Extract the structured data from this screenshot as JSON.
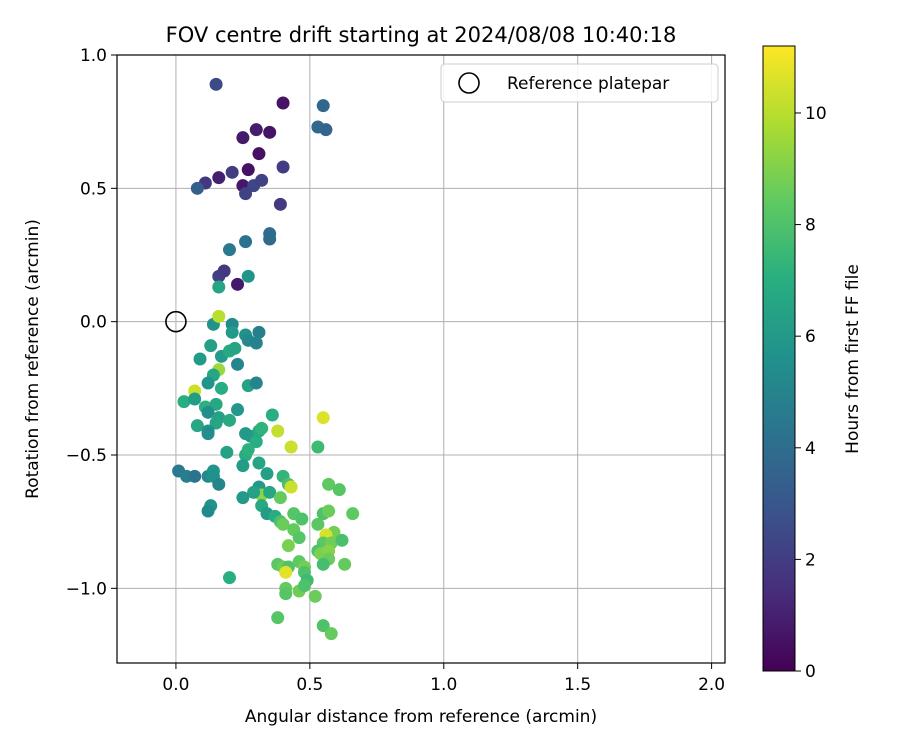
{
  "chart_data": {
    "type": "scatter",
    "title": "FOV centre drift starting at 2024/08/08 10:40:18",
    "xlabel": "Angular distance from reference (arcmin)",
    "ylabel": "Rotation from reference (arcmin)",
    "xlim": [
      -0.22,
      2.05
    ],
    "ylim": [
      -1.28,
      1.0
    ],
    "xticks": [
      0.0,
      0.5,
      1.0,
      1.5,
      2.0
    ],
    "xtick_labels": [
      "0.0",
      "0.5",
      "1.0",
      "1.5",
      "2.0"
    ],
    "yticks": [
      1.0,
      0.5,
      0.0,
      -0.5,
      -1.0
    ],
    "ytick_labels": [
      "1.0",
      "0.5",
      "0.0",
      "−0.5",
      "−1.0"
    ],
    "grid": true,
    "legend": {
      "entries": [
        "Reference platepar"
      ],
      "placement": "top-right"
    },
    "colorbar": {
      "label": "Hours from first FF file",
      "colormap": "viridis",
      "range": [
        0,
        11.2
      ],
      "ticks": [
        0,
        2,
        4,
        6,
        8,
        10
      ],
      "tick_labels": [
        "0",
        "2",
        "4",
        "6",
        "8",
        "10"
      ]
    },
    "reference_point": {
      "x": 0.0,
      "y": 0.0
    },
    "points": [
      {
        "x": 0.15,
        "y": 0.89,
        "c": 2.5
      },
      {
        "x": 0.4,
        "y": 0.82,
        "c": 0.6
      },
      {
        "x": 0.55,
        "y": 0.81,
        "c": 3.7
      },
      {
        "x": 0.25,
        "y": 0.69,
        "c": 0.8
      },
      {
        "x": 0.3,
        "y": 0.72,
        "c": 0.9
      },
      {
        "x": 0.35,
        "y": 0.71,
        "c": 0.6
      },
      {
        "x": 0.53,
        "y": 0.73,
        "c": 3.8
      },
      {
        "x": 0.56,
        "y": 0.72,
        "c": 3.6
      },
      {
        "x": 0.31,
        "y": 0.63,
        "c": 0.5
      },
      {
        "x": 0.21,
        "y": 0.56,
        "c": 2.0
      },
      {
        "x": 0.27,
        "y": 0.57,
        "c": 0.5
      },
      {
        "x": 0.4,
        "y": 0.58,
        "c": 2.0
      },
      {
        "x": 0.16,
        "y": 0.54,
        "c": 1.0
      },
      {
        "x": 0.11,
        "y": 0.52,
        "c": 1.8
      },
      {
        "x": 0.08,
        "y": 0.5,
        "c": 3.4
      },
      {
        "x": 0.25,
        "y": 0.51,
        "c": 0.7
      },
      {
        "x": 0.29,
        "y": 0.51,
        "c": 2.3
      },
      {
        "x": 0.26,
        "y": 0.48,
        "c": 2.2
      },
      {
        "x": 0.32,
        "y": 0.53,
        "c": 2.2
      },
      {
        "x": 0.39,
        "y": 0.44,
        "c": 1.9
      },
      {
        "x": 0.35,
        "y": 0.33,
        "c": 4.0
      },
      {
        "x": 0.35,
        "y": 0.31,
        "c": 3.9
      },
      {
        "x": 0.26,
        "y": 0.3,
        "c": 4.2
      },
      {
        "x": 0.2,
        "y": 0.27,
        "c": 4.5
      },
      {
        "x": 0.16,
        "y": 0.17,
        "c": 2.1
      },
      {
        "x": 0.18,
        "y": 0.19,
        "c": 1.9
      },
      {
        "x": 0.23,
        "y": 0.14,
        "c": 0.8
      },
      {
        "x": 0.27,
        "y": 0.17,
        "c": 5.8
      },
      {
        "x": 0.16,
        "y": 0.13,
        "c": 6.5
      },
      {
        "x": 0.14,
        "y": -0.01,
        "c": 5.7
      },
      {
        "x": 0.16,
        "y": 0.02,
        "c": 10.0
      },
      {
        "x": 0.21,
        "y": -0.01,
        "c": 5.3
      },
      {
        "x": 0.21,
        "y": -0.04,
        "c": 6.0
      },
      {
        "x": 0.26,
        "y": -0.05,
        "c": 5.6
      },
      {
        "x": 0.27,
        "y": -0.07,
        "c": 5.2
      },
      {
        "x": 0.31,
        "y": -0.04,
        "c": 4.8
      },
      {
        "x": 0.3,
        "y": -0.08,
        "c": 4.9
      },
      {
        "x": 0.13,
        "y": -0.09,
        "c": 6.3
      },
      {
        "x": 0.17,
        "y": -0.13,
        "c": 6.1
      },
      {
        "x": 0.2,
        "y": -0.11,
        "c": 6.8
      },
      {
        "x": 0.22,
        "y": -0.1,
        "c": 6.5
      },
      {
        "x": 0.09,
        "y": -0.14,
        "c": 6.0
      },
      {
        "x": 0.23,
        "y": -0.16,
        "c": 5.0
      },
      {
        "x": 0.16,
        "y": -0.18,
        "c": 9.5
      },
      {
        "x": 0.14,
        "y": -0.2,
        "c": 6.6
      },
      {
        "x": 0.12,
        "y": -0.23,
        "c": 5.8
      },
      {
        "x": 0.17,
        "y": -0.25,
        "c": 6.9
      },
      {
        "x": 0.27,
        "y": -0.24,
        "c": 6.4
      },
      {
        "x": 0.3,
        "y": -0.23,
        "c": 5.0
      },
      {
        "x": 0.07,
        "y": -0.26,
        "c": 10.3
      },
      {
        "x": 0.03,
        "y": -0.3,
        "c": 7.0
      },
      {
        "x": 0.07,
        "y": -0.29,
        "c": 6.2
      },
      {
        "x": 0.11,
        "y": -0.32,
        "c": 7.1
      },
      {
        "x": 0.15,
        "y": -0.31,
        "c": 6.7
      },
      {
        "x": 0.12,
        "y": -0.34,
        "c": 5.5
      },
      {
        "x": 0.16,
        "y": -0.36,
        "c": 6.3
      },
      {
        "x": 0.2,
        "y": -0.37,
        "c": 6.8
      },
      {
        "x": 0.23,
        "y": -0.33,
        "c": 5.9
      },
      {
        "x": 0.15,
        "y": -0.38,
        "c": 6.5
      },
      {
        "x": 0.08,
        "y": -0.39,
        "c": 6.6
      },
      {
        "x": 0.12,
        "y": -0.41,
        "c": 5.7
      },
      {
        "x": 0.12,
        "y": -0.42,
        "c": 5.4
      },
      {
        "x": 0.26,
        "y": -0.42,
        "c": 6.1
      },
      {
        "x": 0.28,
        "y": -0.43,
        "c": 6.0
      },
      {
        "x": 0.3,
        "y": -0.45,
        "c": 7.0
      },
      {
        "x": 0.31,
        "y": -0.41,
        "c": 6.8
      },
      {
        "x": 0.32,
        "y": -0.4,
        "c": 7.2
      },
      {
        "x": 0.36,
        "y": -0.35,
        "c": 7.0
      },
      {
        "x": 0.38,
        "y": -0.41,
        "c": 10.2
      },
      {
        "x": 0.19,
        "y": -0.49,
        "c": 6.4
      },
      {
        "x": 0.26,
        "y": -0.5,
        "c": 6.9
      },
      {
        "x": 0.27,
        "y": -0.48,
        "c": 7.1
      },
      {
        "x": 0.25,
        "y": -0.54,
        "c": 6.2
      },
      {
        "x": 0.31,
        "y": -0.53,
        "c": 6.5
      },
      {
        "x": 0.43,
        "y": -0.47,
        "c": 10.3
      },
      {
        "x": 0.53,
        "y": -0.47,
        "c": 7.6
      },
      {
        "x": 0.55,
        "y": -0.36,
        "c": 10.6
      },
      {
        "x": 0.01,
        "y": -0.56,
        "c": 4.5
      },
      {
        "x": 0.04,
        "y": -0.58,
        "c": 4.8
      },
      {
        "x": 0.07,
        "y": -0.58,
        "c": 4.3
      },
      {
        "x": 0.12,
        "y": -0.58,
        "c": 5.2
      },
      {
        "x": 0.14,
        "y": -0.56,
        "c": 5.8
      },
      {
        "x": 0.14,
        "y": -0.58,
        "c": 5.6
      },
      {
        "x": 0.16,
        "y": -0.61,
        "c": 5.0
      },
      {
        "x": 0.34,
        "y": -0.57,
        "c": 6.3
      },
      {
        "x": 0.4,
        "y": -0.58,
        "c": 7.3
      },
      {
        "x": 0.42,
        "y": -0.61,
        "c": 7.9
      },
      {
        "x": 0.43,
        "y": -0.62,
        "c": 10.3
      },
      {
        "x": 0.31,
        "y": -0.62,
        "c": 6.0
      },
      {
        "x": 0.32,
        "y": -0.65,
        "c": 9.2
      },
      {
        "x": 0.29,
        "y": -0.64,
        "c": 6.4
      },
      {
        "x": 0.35,
        "y": -0.64,
        "c": 6.6
      },
      {
        "x": 0.39,
        "y": -0.66,
        "c": 8.5
      },
      {
        "x": 0.13,
        "y": -0.69,
        "c": 5.7
      },
      {
        "x": 0.12,
        "y": -0.71,
        "c": 5.3
      },
      {
        "x": 0.25,
        "y": -0.66,
        "c": 6.0
      },
      {
        "x": 0.32,
        "y": -0.69,
        "c": 6.7
      },
      {
        "x": 0.34,
        "y": -0.72,
        "c": 6.2
      },
      {
        "x": 0.37,
        "y": -0.73,
        "c": 6.9
      },
      {
        "x": 0.39,
        "y": -0.75,
        "c": 7.9
      },
      {
        "x": 0.4,
        "y": -0.76,
        "c": 8.6
      },
      {
        "x": 0.44,
        "y": -0.72,
        "c": 8.2
      },
      {
        "x": 0.47,
        "y": -0.74,
        "c": 8.0
      },
      {
        "x": 0.44,
        "y": -0.78,
        "c": 8.5
      },
      {
        "x": 0.46,
        "y": -0.81,
        "c": 8.2
      },
      {
        "x": 0.42,
        "y": -0.84,
        "c": 8.9
      },
      {
        "x": 0.53,
        "y": -0.76,
        "c": 8.3
      },
      {
        "x": 0.55,
        "y": -0.72,
        "c": 8.0
      },
      {
        "x": 0.57,
        "y": -0.71,
        "c": 8.6
      },
      {
        "x": 0.57,
        "y": -0.61,
        "c": 8.4
      },
      {
        "x": 0.61,
        "y": -0.63,
        "c": 8.2
      },
      {
        "x": 0.59,
        "y": -0.79,
        "c": 8.8
      },
      {
        "x": 0.56,
        "y": -0.8,
        "c": 10.5
      },
      {
        "x": 0.55,
        "y": -0.83,
        "c": 8.3
      },
      {
        "x": 0.58,
        "y": -0.83,
        "c": 8.7
      },
      {
        "x": 0.62,
        "y": -0.82,
        "c": 7.9
      },
      {
        "x": 0.66,
        "y": -0.72,
        "c": 8.4
      },
      {
        "x": 0.53,
        "y": -0.86,
        "c": 8.0
      },
      {
        "x": 0.54,
        "y": -0.87,
        "c": 8.9
      },
      {
        "x": 0.57,
        "y": -0.86,
        "c": 9.1
      },
      {
        "x": 0.57,
        "y": -0.89,
        "c": 8.6
      },
      {
        "x": 0.55,
        "y": -0.91,
        "c": 7.8
      },
      {
        "x": 0.63,
        "y": -0.91,
        "c": 8.5
      },
      {
        "x": 0.38,
        "y": -0.91,
        "c": 8.3
      },
      {
        "x": 0.4,
        "y": -0.92,
        "c": 8.6
      },
      {
        "x": 0.42,
        "y": -0.92,
        "c": 8.1
      },
      {
        "x": 0.41,
        "y": -0.94,
        "c": 10.7
      },
      {
        "x": 0.46,
        "y": -0.9,
        "c": 8.4
      },
      {
        "x": 0.48,
        "y": -0.92,
        "c": 8.8
      },
      {
        "x": 0.48,
        "y": -0.94,
        "c": 8.0
      },
      {
        "x": 0.49,
        "y": -0.97,
        "c": 7.6
      },
      {
        "x": 0.41,
        "y": -1.0,
        "c": 8.5
      },
      {
        "x": 0.41,
        "y": -1.02,
        "c": 8.2
      },
      {
        "x": 0.46,
        "y": -1.01,
        "c": 8.7
      },
      {
        "x": 0.48,
        "y": -0.99,
        "c": 8.0
      },
      {
        "x": 0.52,
        "y": -1.03,
        "c": 8.6
      },
      {
        "x": 0.2,
        "y": -0.96,
        "c": 7.0
      },
      {
        "x": 0.38,
        "y": -1.11,
        "c": 8.2
      },
      {
        "x": 0.55,
        "y": -1.14,
        "c": 8.0
      },
      {
        "x": 0.58,
        "y": -1.17,
        "c": 8.5
      }
    ]
  }
}
